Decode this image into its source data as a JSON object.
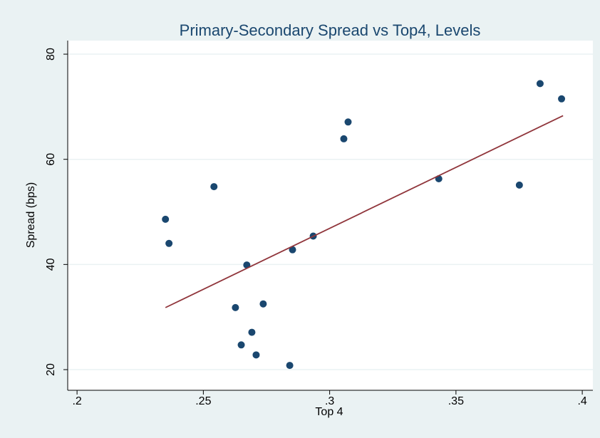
{
  "chart_data": {
    "type": "scatter",
    "title": "Primary-Secondary Spread vs Top4, Levels",
    "x_label": "Top 4",
    "y_label": "Spread (bps)",
    "xlim": [
      0.1963,
      0.4042
    ],
    "ylim": [
      16.07,
      82.58
    ],
    "xticks": [
      {
        "value": 0.2,
        "label": ".2"
      },
      {
        "value": 0.25,
        "label": ".25"
      },
      {
        "value": 0.3,
        "label": ".3"
      },
      {
        "value": 0.35,
        "label": ".35"
      },
      {
        "value": 0.4,
        "label": ".4"
      }
    ],
    "yticks": [
      20,
      40,
      60,
      80
    ],
    "grid": true,
    "series": [
      {
        "name": "Spread",
        "color": "#1a476f",
        "x": [
          0.235,
          0.2364,
          0.2542,
          0.2672,
          0.2627,
          0.2737,
          0.265,
          0.2692,
          0.2709,
          0.2842,
          0.2853,
          0.2935,
          0.3056,
          0.3073,
          0.3432,
          0.3751,
          0.3833,
          0.3918
        ],
        "values": [
          48.6,
          44.0,
          54.8,
          39.9,
          31.8,
          32.5,
          24.7,
          27.1,
          22.8,
          20.8,
          42.8,
          45.4,
          63.9,
          67.1,
          56.3,
          55.1,
          74.4,
          71.5
        ]
      },
      {
        "name": "Fitted values",
        "type": "line",
        "color": "#90353b",
        "x": [
          0.235,
          0.3924
        ],
        "values": [
          31.8,
          68.3
        ]
      }
    ]
  }
}
